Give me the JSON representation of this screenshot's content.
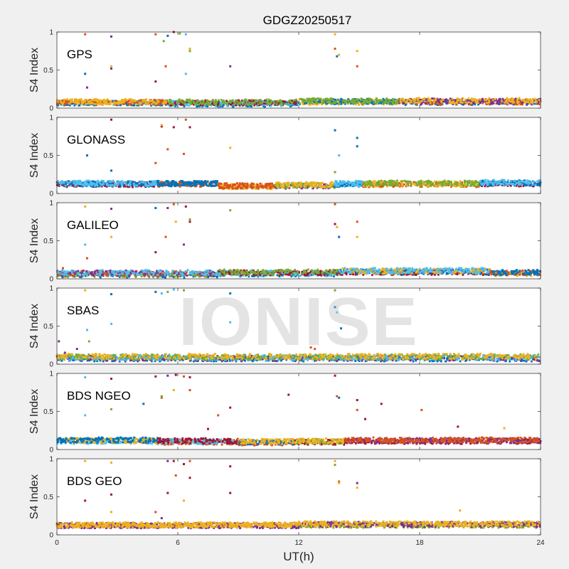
{
  "chart_data": {
    "type": "scatter",
    "title": "GDGZ20250517",
    "xlabel": "UT(h)",
    "ylabel": "S4 Index",
    "xlim": [
      0,
      24
    ],
    "ylim": [
      0,
      1
    ],
    "x_ticks": [
      "0",
      "6",
      "12",
      "18",
      "24"
    ],
    "y_ticks": [
      "0",
      "0.5",
      "1"
    ],
    "grid": false,
    "watermark": "IONISE",
    "panels": [
      {
        "name": "GPS",
        "baseline": [
          {
            "from": 0,
            "to": 5.5,
            "level": 0.08,
            "colors": [
              "#0072BD",
              "#D95319",
              "#EDB120"
            ]
          },
          {
            "from": 5.5,
            "to": 12,
            "level": 0.07,
            "colors": [
              "#0072BD",
              "#4DBEEE",
              "#A2142F",
              "#77AC30"
            ]
          },
          {
            "from": 12,
            "to": 17,
            "level": 0.09,
            "colors": [
              "#EDB120",
              "#0072BD",
              "#77AC30"
            ]
          },
          {
            "from": 17,
            "to": 24,
            "level": 0.09,
            "colors": [
              "#0072BD",
              "#D95319",
              "#7E2F8E",
              "#EDB120"
            ]
          }
        ],
        "spikes": [
          {
            "x": 1.4,
            "y": 0.97,
            "color": "#D95319"
          },
          {
            "x": 1.4,
            "y": 0.45,
            "color": "#0072BD"
          },
          {
            "x": 1.5,
            "y": 0.27,
            "color": "#7E2F8E"
          },
          {
            "x": 2.7,
            "y": 0.94,
            "color": "#7E2F8E"
          },
          {
            "x": 2.7,
            "y": 0.55,
            "color": "#EDB120"
          },
          {
            "x": 2.7,
            "y": 0.52,
            "color": "#7E2F8E"
          },
          {
            "x": 4.9,
            "y": 0.97,
            "color": "#D95319"
          },
          {
            "x": 4.9,
            "y": 0.35,
            "color": "#A2142F"
          },
          {
            "x": 5.3,
            "y": 0.88,
            "color": "#77AC30"
          },
          {
            "x": 5.4,
            "y": 0.55,
            "color": "#D95319"
          },
          {
            "x": 5.5,
            "y": 0.95,
            "color": "#0072BD"
          },
          {
            "x": 5.8,
            "y": 1.0,
            "color": "#A2142F"
          },
          {
            "x": 6.1,
            "y": 0.98,
            "color": "#77AC30"
          },
          {
            "x": 6.4,
            "y": 0.97,
            "color": "#4DBEEE"
          },
          {
            "x": 6.4,
            "y": 0.45,
            "color": "#4DBEEE"
          },
          {
            "x": 6.6,
            "y": 0.75,
            "color": "#77AC30"
          },
          {
            "x": 6.6,
            "y": 0.78,
            "color": "#EDB120"
          },
          {
            "x": 8.6,
            "y": 0.55,
            "color": "#7E2F8E"
          },
          {
            "x": 13.8,
            "y": 0.97,
            "color": "#EDB120"
          },
          {
            "x": 13.8,
            "y": 0.78,
            "color": "#D95319"
          },
          {
            "x": 13.9,
            "y": 0.68,
            "color": "#0072BD"
          },
          {
            "x": 14.0,
            "y": 0.7,
            "color": "#EDB120"
          },
          {
            "x": 14.9,
            "y": 0.75,
            "color": "#EDB120"
          },
          {
            "x": 14.9,
            "y": 0.55,
            "color": "#D95319"
          }
        ]
      },
      {
        "name": "GLONASS",
        "baseline": [
          {
            "from": 0,
            "to": 5,
            "level": 0.13,
            "colors": [
              "#A2142F",
              "#0072BD",
              "#4DBEEE"
            ]
          },
          {
            "from": 5,
            "to": 8,
            "level": 0.13,
            "colors": [
              "#D95319",
              "#0072BD"
            ]
          },
          {
            "from": 8,
            "to": 10.8,
            "level": 0.1,
            "colors": [
              "#EDB120",
              "#D95319"
            ]
          },
          {
            "from": 10.8,
            "to": 13.8,
            "level": 0.11,
            "colors": [
              "#7E2F8E",
              "#77AC30",
              "#EDB120"
            ]
          },
          {
            "from": 13.8,
            "to": 15.2,
            "level": 0.13,
            "colors": [
              "#0072BD",
              "#4DBEEE"
            ]
          },
          {
            "from": 15.2,
            "to": 21,
            "level": 0.13,
            "colors": [
              "#D95319",
              "#EDB120",
              "#77AC30"
            ]
          },
          {
            "from": 21,
            "to": 24,
            "level": 0.14,
            "colors": [
              "#A2142F",
              "#0072BD",
              "#4DBEEE"
            ]
          }
        ],
        "spikes": [
          {
            "x": 1.5,
            "y": 0.5,
            "color": "#0072BD"
          },
          {
            "x": 2.7,
            "y": 0.97,
            "color": "#A2142F"
          },
          {
            "x": 2.7,
            "y": 0.3,
            "color": "#0072BD"
          },
          {
            "x": 4.9,
            "y": 0.4,
            "color": "#D95319"
          },
          {
            "x": 5.2,
            "y": 0.88,
            "color": "#A2142F"
          },
          {
            "x": 5.2,
            "y": 0.9,
            "color": "#EDB120"
          },
          {
            "x": 5.5,
            "y": 0.58,
            "color": "#D95319"
          },
          {
            "x": 5.8,
            "y": 0.87,
            "color": "#A2142F"
          },
          {
            "x": 6.4,
            "y": 0.97,
            "color": "#D95319"
          },
          {
            "x": 6.6,
            "y": 0.87,
            "color": "#A2142F"
          },
          {
            "x": 6.3,
            "y": 0.52,
            "color": "#D95319"
          },
          {
            "x": 8.6,
            "y": 0.6,
            "color": "#EDB120"
          },
          {
            "x": 13.8,
            "y": 0.83,
            "color": "#0072BD"
          },
          {
            "x": 13.8,
            "y": 0.28,
            "color": "#77AC30"
          },
          {
            "x": 14.0,
            "y": 0.5,
            "color": "#4DBEEE"
          },
          {
            "x": 14.9,
            "y": 0.73,
            "color": "#0072BD"
          },
          {
            "x": 14.9,
            "y": 0.62,
            "color": "#0072BD"
          }
        ]
      },
      {
        "name": "GALILEO",
        "baseline": [
          {
            "from": 0,
            "to": 8,
            "level": 0.07,
            "colors": [
              "#0072BD",
              "#77AC30",
              "#D95319",
              "#7E2F8E",
              "#4DBEEE"
            ]
          },
          {
            "from": 8,
            "to": 14,
            "level": 0.08,
            "colors": [
              "#0072BD",
              "#4DBEEE",
              "#A2142F",
              "#77AC30"
            ]
          },
          {
            "from": 14,
            "to": 21.5,
            "level": 0.1,
            "colors": [
              "#A2142F",
              "#0072BD",
              "#EDB120",
              "#4DBEEE"
            ]
          },
          {
            "from": 21.5,
            "to": 24,
            "level": 0.08,
            "colors": [
              "#EDB120",
              "#D95319",
              "#0072BD"
            ]
          }
        ],
        "spikes": [
          {
            "x": 0.3,
            "y": 0.14,
            "color": "#D95319"
          },
          {
            "x": 1.4,
            "y": 0.95,
            "color": "#EDB120"
          },
          {
            "x": 1.4,
            "y": 0.45,
            "color": "#4DBEEE"
          },
          {
            "x": 1.5,
            "y": 0.27,
            "color": "#D95319"
          },
          {
            "x": 2.7,
            "y": 0.92,
            "color": "#7E2F8E"
          },
          {
            "x": 2.7,
            "y": 0.55,
            "color": "#EDB120"
          },
          {
            "x": 4.9,
            "y": 0.93,
            "color": "#0072BD"
          },
          {
            "x": 4.9,
            "y": 0.35,
            "color": "#A2142F"
          },
          {
            "x": 5.4,
            "y": 0.55,
            "color": "#D95319"
          },
          {
            "x": 5.5,
            "y": 0.93,
            "color": "#7E2F8E"
          },
          {
            "x": 5.8,
            "y": 0.98,
            "color": "#D95319"
          },
          {
            "x": 5.9,
            "y": 0.75,
            "color": "#EDB120"
          },
          {
            "x": 6.3,
            "y": 0.45,
            "color": "#7E2F8E"
          },
          {
            "x": 6.4,
            "y": 0.95,
            "color": "#A2142F"
          },
          {
            "x": 6.6,
            "y": 0.78,
            "color": "#77AC30"
          },
          {
            "x": 6.6,
            "y": 0.75,
            "color": "#A2142F"
          },
          {
            "x": 8.6,
            "y": 0.9,
            "color": "#77AC30"
          },
          {
            "x": 13.8,
            "y": 0.98,
            "color": "#D95319"
          },
          {
            "x": 13.8,
            "y": 0.72,
            "color": "#A2142F"
          },
          {
            "x": 13.9,
            "y": 0.68,
            "color": "#EDB120"
          },
          {
            "x": 14.0,
            "y": 0.55,
            "color": "#0072BD"
          },
          {
            "x": 14.9,
            "y": 0.75,
            "color": "#D95319"
          },
          {
            "x": 14.9,
            "y": 0.55,
            "color": "#EDB120"
          }
        ]
      },
      {
        "name": "SBAS",
        "baseline": [
          {
            "from": 0,
            "to": 24,
            "level": 0.09,
            "colors": [
              "#0072BD",
              "#7E2F8E",
              "#4DBEEE",
              "#77AC30",
              "#EDB120"
            ]
          }
        ],
        "spikes": [
          {
            "x": 0.1,
            "y": 0.3,
            "color": "#7E2F8E"
          },
          {
            "x": 0.4,
            "y": 0.15,
            "color": "#7E2F8E"
          },
          {
            "x": 1.0,
            "y": 0.2,
            "color": "#7E2F8E"
          },
          {
            "x": 1.4,
            "y": 0.97,
            "color": "#EDB120"
          },
          {
            "x": 1.5,
            "y": 0.45,
            "color": "#4DBEEE"
          },
          {
            "x": 1.6,
            "y": 0.3,
            "color": "#77AC30"
          },
          {
            "x": 2.7,
            "y": 0.92,
            "color": "#0072BD"
          },
          {
            "x": 2.7,
            "y": 0.53,
            "color": "#4DBEEE"
          },
          {
            "x": 4.9,
            "y": 0.95,
            "color": "#0072BD"
          },
          {
            "x": 5.2,
            "y": 0.93,
            "color": "#4DBEEE"
          },
          {
            "x": 5.5,
            "y": 0.95,
            "color": "#77AC30"
          },
          {
            "x": 5.8,
            "y": 0.98,
            "color": "#4DBEEE"
          },
          {
            "x": 6.3,
            "y": 0.97,
            "color": "#77AC30"
          },
          {
            "x": 8.6,
            "y": 0.93,
            "color": "#0072BD"
          },
          {
            "x": 8.6,
            "y": 0.55,
            "color": "#4DBEEE"
          },
          {
            "x": 12.6,
            "y": 0.22,
            "color": "#D95319"
          },
          {
            "x": 12.8,
            "y": 0.2,
            "color": "#D95319"
          },
          {
            "x": 13.8,
            "y": 0.97,
            "color": "#77AC30"
          },
          {
            "x": 13.8,
            "y": 0.75,
            "color": "#0072BD"
          },
          {
            "x": 13.9,
            "y": 0.68,
            "color": "#4DBEEE"
          },
          {
            "x": 14.1,
            "y": 0.47,
            "color": "#0072BD"
          }
        ]
      },
      {
        "name": "BDS NGEO",
        "baseline": [
          {
            "from": 0,
            "to": 5,
            "level": 0.12,
            "colors": [
              "#4DBEEE",
              "#EDB120",
              "#0072BD"
            ]
          },
          {
            "from": 5,
            "to": 9,
            "level": 0.11,
            "colors": [
              "#D95319",
              "#4DBEEE",
              "#A2142F"
            ]
          },
          {
            "from": 9,
            "to": 11.8,
            "level": 0.1,
            "colors": [
              "#D95319",
              "#0072BD",
              "#EDB120"
            ]
          },
          {
            "from": 11.8,
            "to": 14.3,
            "level": 0.11,
            "colors": [
              "#A2142F",
              "#77AC30",
              "#EDB120"
            ]
          },
          {
            "from": 14.3,
            "to": 24,
            "level": 0.12,
            "colors": [
              "#A2142F",
              "#7E2F8E",
              "#D95319"
            ]
          }
        ],
        "spikes": [
          {
            "x": 1.4,
            "y": 0.95,
            "color": "#4DBEEE"
          },
          {
            "x": 1.4,
            "y": 0.45,
            "color": "#4DBEEE"
          },
          {
            "x": 2.7,
            "y": 0.93,
            "color": "#A2142F"
          },
          {
            "x": 2.7,
            "y": 0.53,
            "color": "#77AC30"
          },
          {
            "x": 4.3,
            "y": 0.6,
            "color": "#0072BD"
          },
          {
            "x": 4.9,
            "y": 0.96,
            "color": "#A2142F"
          },
          {
            "x": 5.2,
            "y": 0.68,
            "color": "#D95319"
          },
          {
            "x": 5.2,
            "y": 0.7,
            "color": "#77AC30"
          },
          {
            "x": 5.5,
            "y": 0.97,
            "color": "#7E2F8E"
          },
          {
            "x": 5.8,
            "y": 0.78,
            "color": "#EDB120"
          },
          {
            "x": 5.9,
            "y": 0.98,
            "color": "#A2142F"
          },
          {
            "x": 6.3,
            "y": 0.96,
            "color": "#D95319"
          },
          {
            "x": 6.6,
            "y": 0.78,
            "color": "#D95319"
          },
          {
            "x": 6.6,
            "y": 0.95,
            "color": "#A2142F"
          },
          {
            "x": 7.5,
            "y": 0.27,
            "color": "#A2142F"
          },
          {
            "x": 8.0,
            "y": 0.45,
            "color": "#D95319"
          },
          {
            "x": 8.6,
            "y": 0.55,
            "color": "#A2142F"
          },
          {
            "x": 11.5,
            "y": 0.72,
            "color": "#A2142F"
          },
          {
            "x": 13.8,
            "y": 0.97,
            "color": "#A2142F"
          },
          {
            "x": 13.9,
            "y": 0.7,
            "color": "#D95319"
          },
          {
            "x": 14.0,
            "y": 0.68,
            "color": "#0072BD"
          },
          {
            "x": 14.9,
            "y": 0.65,
            "color": "#A2142F"
          },
          {
            "x": 14.9,
            "y": 0.52,
            "color": "#D95319"
          },
          {
            "x": 15.3,
            "y": 0.4,
            "color": "#A2142F"
          },
          {
            "x": 16.1,
            "y": 0.6,
            "color": "#A2142F"
          },
          {
            "x": 18.1,
            "y": 0.52,
            "color": "#D95319"
          },
          {
            "x": 19.9,
            "y": 0.3,
            "color": "#A2142F"
          },
          {
            "x": 22.2,
            "y": 0.28,
            "color": "#EDB120"
          }
        ]
      },
      {
        "name": "BDS GEO",
        "baseline": [
          {
            "from": 0,
            "to": 12,
            "level": 0.13,
            "colors": [
              "#7E2F8E",
              "#EDB120"
            ]
          },
          {
            "from": 12,
            "to": 24,
            "level": 0.14,
            "colors": [
              "#77AC30",
              "#7E2F8E",
              "#EDB120"
            ]
          }
        ],
        "spikes": [
          {
            "x": 1.4,
            "y": 0.97,
            "color": "#EDB120"
          },
          {
            "x": 1.4,
            "y": 0.45,
            "color": "#A2142F"
          },
          {
            "x": 2.7,
            "y": 0.95,
            "color": "#EDB120"
          },
          {
            "x": 2.7,
            "y": 0.53,
            "color": "#A2142F"
          },
          {
            "x": 2.7,
            "y": 0.3,
            "color": "#EDB120"
          },
          {
            "x": 4.9,
            "y": 0.3,
            "color": "#D95319"
          },
          {
            "x": 5.2,
            "y": 0.22,
            "color": "#7E2F8E"
          },
          {
            "x": 5.5,
            "y": 0.97,
            "color": "#7E2F8E"
          },
          {
            "x": 5.5,
            "y": 0.55,
            "color": "#A2142F"
          },
          {
            "x": 5.8,
            "y": 0.97,
            "color": "#A2142F"
          },
          {
            "x": 5.9,
            "y": 0.78,
            "color": "#D95319"
          },
          {
            "x": 6.3,
            "y": 0.93,
            "color": "#A2142F"
          },
          {
            "x": 6.3,
            "y": 0.45,
            "color": "#EDB120"
          },
          {
            "x": 6.6,
            "y": 0.97,
            "color": "#D95319"
          },
          {
            "x": 6.6,
            "y": 0.75,
            "color": "#A2142F"
          },
          {
            "x": 8.6,
            "y": 0.9,
            "color": "#A2142F"
          },
          {
            "x": 8.6,
            "y": 0.55,
            "color": "#A2142F"
          },
          {
            "x": 13.8,
            "y": 0.97,
            "color": "#EDB120"
          },
          {
            "x": 13.8,
            "y": 0.92,
            "color": "#77AC30"
          },
          {
            "x": 14.0,
            "y": 0.7,
            "color": "#D95319"
          },
          {
            "x": 14.0,
            "y": 0.68,
            "color": "#EDB120"
          },
          {
            "x": 14.9,
            "y": 0.68,
            "color": "#7E2F8E"
          },
          {
            "x": 14.9,
            "y": 0.62,
            "color": "#EDB120"
          },
          {
            "x": 20.0,
            "y": 0.32,
            "color": "#EDB120"
          }
        ]
      }
    ]
  }
}
